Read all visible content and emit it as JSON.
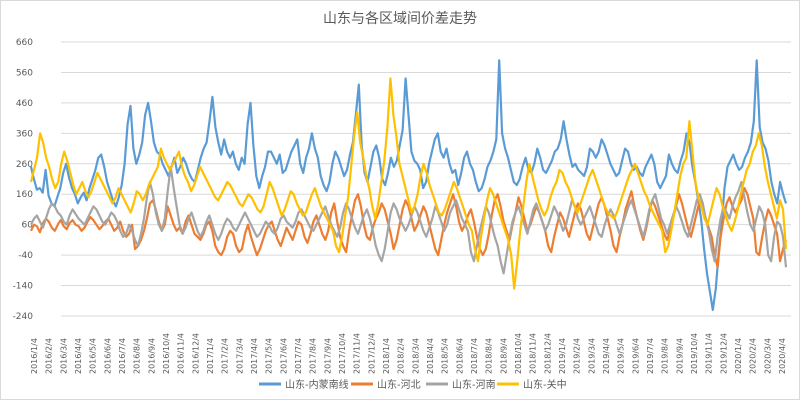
{
  "chart_data": {
    "type": "line",
    "title": "山东与各区域间价差走势",
    "y_ticks": [
      660,
      560,
      460,
      360,
      260,
      160,
      60,
      -40,
      -140,
      -240
    ],
    "ylim": [
      -240,
      660
    ],
    "x_range": [
      "2016/1/4",
      "2020/4/4"
    ],
    "x_tick_labels": [
      "2016/1/4",
      "2016/2/4",
      "2016/3/4",
      "2016/4/4",
      "2016/5/4",
      "2016/6/4",
      "2016/7/4",
      "2016/8/4",
      "2016/9/4",
      "2016/10/4",
      "2016/11/4",
      "2016/12/4",
      "2017/1/4",
      "2017/2/4",
      "2017/3/4",
      "2017/4/4",
      "2017/5/4",
      "2017/6/4",
      "2017/7/4",
      "2017/8/4",
      "2017/9/4",
      "2017/10/4",
      "2017/11/4",
      "2017/12/4",
      "2018/1/4",
      "2018/2/4",
      "2018/3/4",
      "2018/4/4",
      "2018/5/4",
      "2018/6/4",
      "2018/7/4",
      "2018/8/4",
      "2018/9/4",
      "2018/10/4",
      "2018/11/4",
      "2018/12/4",
      "2019/1/4",
      "2019/2/4",
      "2019/3/4",
      "2019/4/4",
      "2019/5/4",
      "2019/6/4",
      "2019/7/4",
      "2019/8/4",
      "2019/9/4",
      "2019/10/4",
      "2019/11/4",
      "2019/12/4",
      "2020/1/4",
      "2020/2/4",
      "2020/3/4",
      "2020/4/4"
    ],
    "grid": true,
    "legend_position": "bottom",
    "series": [
      {
        "name": "山东-内蒙南线",
        "color": "#5B9BD5",
        "values": [
          250,
          210,
          175,
          180,
          165,
          240,
          155,
          130,
          120,
          150,
          180,
          230,
          260,
          215,
          180,
          160,
          130,
          150,
          165,
          140,
          180,
          210,
          240,
          280,
          290,
          250,
          200,
          170,
          140,
          120,
          150,
          190,
          260,
          390,
          450,
          310,
          260,
          290,
          330,
          420,
          460,
          400,
          330,
          300,
          290,
          260,
          240,
          220,
          250,
          280,
          230,
          250,
          280,
          260,
          230,
          210,
          200,
          240,
          280,
          310,
          330,
          400,
          480,
          380,
          330,
          290,
          340,
          300,
          280,
          300,
          260,
          240,
          280,
          260,
          390,
          460,
          320,
          220,
          180,
          220,
          250,
          300,
          300,
          280,
          260,
          290,
          230,
          240,
          270,
          300,
          320,
          340,
          260,
          230,
          280,
          310,
          360,
          310,
          280,
          220,
          190,
          170,
          200,
          260,
          300,
          280,
          250,
          220,
          240,
          290,
          330,
          420,
          520,
          320,
          230,
          200,
          250,
          300,
          320,
          280,
          210,
          190,
          230,
          280,
          250,
          270,
          320,
          370,
          540,
          420,
          300,
          270,
          260,
          240,
          180,
          200,
          260,
          300,
          340,
          360,
          300,
          280,
          310,
          260,
          230,
          240,
          190,
          230,
          280,
          300,
          260,
          240,
          200,
          170,
          180,
          210,
          250,
          270,
          300,
          340,
          600,
          360,
          310,
          280,
          240,
          200,
          190,
          210,
          250,
          280,
          240,
          230,
          260,
          310,
          280,
          240,
          230,
          250,
          270,
          300,
          310,
          340,
          400,
          340,
          290,
          250,
          260,
          240,
          230,
          220,
          250,
          310,
          300,
          280,
          300,
          340,
          320,
          290,
          260,
          240,
          220,
          230,
          270,
          310,
          300,
          260,
          240,
          250,
          230,
          220,
          250,
          270,
          290,
          260,
          200,
          180,
          200,
          220,
          290,
          260,
          240,
          230,
          270,
          300,
          360,
          330,
          250,
          200,
          140,
          80,
          -20,
          -100,
          -160,
          -220,
          -150,
          -30,
          60,
          180,
          250,
          270,
          290,
          260,
          240,
          250,
          280,
          300,
          330,
          400,
          600,
          380,
          330,
          310,
          270,
          200,
          160,
          130,
          200,
          160,
          130
        ]
      },
      {
        "name": "山东-河北",
        "color": "#ED7D31",
        "values": [
          40,
          60,
          55,
          35,
          65,
          80,
          70,
          50,
          40,
          60,
          75,
          55,
          45,
          65,
          75,
          60,
          55,
          40,
          50,
          70,
          85,
          75,
          60,
          45,
          55,
          70,
          80,
          60,
          40,
          50,
          70,
          40,
          20,
          30,
          60,
          -20,
          -10,
          10,
          40,
          80,
          130,
          140,
          110,
          70,
          40,
          60,
          120,
          90,
          60,
          40,
          50,
          30,
          70,
          90,
          60,
          30,
          20,
          10,
          30,
          60,
          70,
          40,
          -10,
          -30,
          -40,
          -20,
          20,
          40,
          30,
          -10,
          -30,
          -20,
          30,
          60,
          20,
          -10,
          -40,
          -20,
          10,
          40,
          60,
          70,
          40,
          10,
          -10,
          20,
          50,
          30,
          10,
          40,
          70,
          60,
          20,
          0,
          30,
          70,
          90,
          60,
          30,
          10,
          40,
          100,
          130,
          70,
          20,
          -10,
          -30,
          40,
          90,
          140,
          160,
          120,
          60,
          20,
          10,
          50,
          80,
          100,
          130,
          110,
          70,
          30,
          -20,
          10,
          60,
          110,
          140,
          120,
          80,
          40,
          60,
          90,
          120,
          100,
          60,
          20,
          -20,
          -40,
          10,
          60,
          100,
          130,
          160,
          120,
          70,
          40,
          60,
          90,
          110,
          70,
          20,
          -20,
          -40,
          -20,
          30,
          90,
          140,
          160,
          120,
          70,
          40,
          10,
          60,
          100,
          150,
          120,
          80,
          40,
          60,
          90,
          120,
          100,
          70,
          40,
          -10,
          -30,
          20,
          60,
          100,
          80,
          50,
          20,
          60,
          100,
          130,
          110,
          70,
          30,
          10,
          50,
          90,
          130,
          150,
          120,
          80,
          40,
          -10,
          -30,
          20,
          60,
          110,
          140,
          170,
          120,
          80,
          40,
          10,
          50,
          100,
          140,
          120,
          90,
          60,
          30,
          10,
          40,
          80,
          120,
          160,
          130,
          90,
          50,
          20,
          60,
          100,
          140,
          120,
          80,
          50,
          20,
          -40,
          -80,
          20,
          80,
          130,
          150,
          120,
          100,
          120,
          140,
          180,
          160,
          120,
          80,
          -30,
          -40,
          20,
          70,
          110,
          90,
          60,
          30,
          -60,
          -20,
          10
        ]
      },
      {
        "name": "山东-河南",
        "color": "#A5A5A5",
        "values": [
          60,
          80,
          90,
          70,
          50,
          80,
          110,
          130,
          120,
          100,
          90,
          70,
          60,
          90,
          110,
          95,
          80,
          70,
          60,
          80,
          100,
          120,
          110,
          90,
          70,
          60,
          80,
          100,
          90,
          70,
          40,
          20,
          30,
          60,
          40,
          10,
          -10,
          30,
          80,
          150,
          200,
          160,
          100,
          60,
          40,
          80,
          170,
          250,
          180,
          120,
          60,
          30,
          50,
          80,
          100,
          70,
          40,
          20,
          40,
          70,
          90,
          60,
          30,
          10,
          30,
          60,
          80,
          70,
          50,
          40,
          60,
          80,
          100,
          80,
          60,
          40,
          20,
          30,
          50,
          70,
          60,
          40,
          30,
          50,
          80,
          90,
          70,
          60,
          50,
          70,
          100,
          110,
          90,
          70,
          50,
          40,
          60,
          80,
          100,
          120,
          90,
          60,
          40,
          20,
          50,
          100,
          130,
          110,
          80,
          50,
          30,
          60,
          90,
          110,
          80,
          40,
          -10,
          -40,
          -60,
          -20,
          40,
          100,
          130,
          110,
          80,
          60,
          40,
          60,
          90,
          120,
          100,
          70,
          40,
          20,
          50,
          80,
          120,
          100,
          70,
          40,
          60,
          100,
          120,
          140,
          110,
          80,
          60,
          40,
          -30,
          -60,
          -10,
          40,
          80,
          120,
          100,
          60,
          20,
          -10,
          -60,
          -100,
          -40,
          20,
          70,
          100,
          120,
          90,
          60,
          30,
          70,
          110,
          130,
          100,
          70,
          40,
          60,
          90,
          120,
          100,
          70,
          40,
          60,
          100,
          140,
          120,
          80,
          60,
          80,
          100,
          120,
          90,
          60,
          30,
          20,
          60,
          90,
          110,
          90,
          60,
          30,
          60,
          90,
          120,
          140,
          110,
          80,
          50,
          20,
          60,
          110,
          140,
          160,
          120,
          80,
          60,
          30,
          60,
          90,
          120,
          100,
          70,
          40,
          20,
          60,
          100,
          140,
          160,
          130,
          80,
          40,
          -20,
          -60,
          20,
          80,
          120,
          100,
          80,
          120,
          150,
          170,
          200,
          150,
          100,
          60,
          40,
          80,
          120,
          100,
          60,
          -40,
          -60,
          20,
          70,
          60,
          20,
          -80
        ]
      },
      {
        "name": "山东-关中",
        "color": "#FFC000",
        "values": [
          200,
          240,
          280,
          360,
          330,
          280,
          250,
          210,
          180,
          200,
          260,
          300,
          270,
          230,
          190,
          160,
          180,
          200,
          170,
          150,
          170,
          200,
          230,
          210,
          190,
          170,
          150,
          130,
          150,
          180,
          160,
          140,
          120,
          100,
          130,
          170,
          160,
          140,
          160,
          190,
          210,
          230,
          250,
          310,
          280,
          260,
          240,
          260,
          280,
          300,
          250,
          220,
          200,
          170,
          190,
          220,
          250,
          230,
          210,
          190,
          170,
          150,
          140,
          160,
          180,
          200,
          190,
          170,
          150,
          130,
          120,
          140,
          160,
          150,
          130,
          110,
          100,
          120,
          160,
          200,
          180,
          150,
          120,
          90,
          110,
          140,
          170,
          160,
          130,
          110,
          90,
          100,
          130,
          160,
          180,
          150,
          120,
          100,
          80,
          60,
          40,
          -10,
          -30,
          20,
          90,
          150,
          250,
          350,
          430,
          330,
          280,
          220,
          180,
          120,
          80,
          130,
          200,
          270,
          380,
          540,
          420,
          350,
          260,
          220,
          180,
          140,
          100,
          120,
          160,
          220,
          260,
          230,
          190,
          160,
          130,
          100,
          90,
          110,
          140,
          170,
          200,
          180,
          150,
          120,
          90,
          60,
          40,
          -20,
          -60,
          20,
          80,
          140,
          180,
          160,
          130,
          100,
          70,
          40,
          10,
          -40,
          -150,
          -60,
          40,
          120,
          200,
          260,
          220,
          180,
          140,
          110,
          90,
          110,
          150,
          180,
          200,
          240,
          230,
          200,
          180,
          150,
          120,
          100,
          130,
          160,
          190,
          220,
          240,
          210,
          180,
          150,
          120,
          100,
          90,
          80,
          100,
          130,
          160,
          190,
          220,
          240,
          260,
          230,
          200,
          170,
          150,
          120,
          100,
          80,
          60,
          40,
          -30,
          -10,
          40,
          100,
          160,
          220,
          260,
          280,
          400,
          300,
          200,
          150,
          120,
          80,
          60,
          100,
          140,
          180,
          160,
          120,
          90,
          60,
          40,
          70,
          110,
          160,
          200,
          240,
          260,
          300,
          320,
          360,
          320,
          250,
          200,
          160,
          120,
          80,
          140,
          110,
          -20
        ]
      }
    ]
  }
}
